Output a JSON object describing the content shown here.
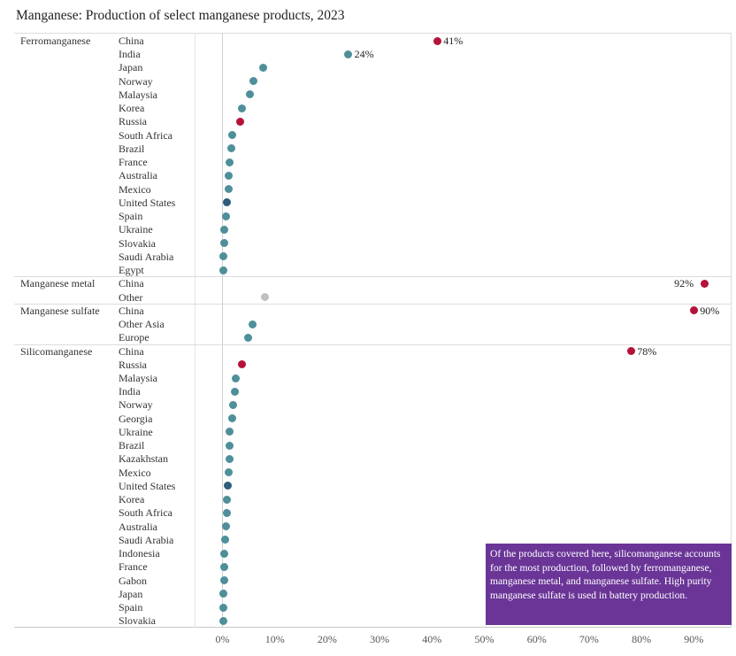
{
  "title": "Manganese: Production of select manganese products, 2023",
  "colors": {
    "china": "#b5123a",
    "default": "#4e8f99",
    "united_states": "#2f5b7d",
    "other": "#c0c0c0",
    "note_bg": "#6a3597"
  },
  "note": "Of the products covered here, silicomanganese accounts for the most production, followed by ferromanganese, manganese metal, and manganese sulfate. High purity manganese sulfate is used in battery production.",
  "chart_data": {
    "type": "scatter",
    "title": "Manganese: Production of select manganese products, 2023",
    "xlabel": "",
    "ylabel": "",
    "xlim": [
      0,
      97
    ],
    "x_ticks": [
      "0%",
      "10%",
      "20%",
      "30%",
      "40%",
      "50%",
      "60%",
      "70%",
      "80%",
      "90%"
    ],
    "x_tick_values": [
      0,
      10,
      20,
      30,
      40,
      50,
      60,
      70,
      80,
      90
    ],
    "value_unit": "percent share of production",
    "groups": [
      {
        "name": "Ferromanganese",
        "rows": [
          {
            "country": "China",
            "value": 41,
            "label": "41%",
            "category": "china"
          },
          {
            "country": "India",
            "value": 24,
            "label": "24%",
            "category": "default"
          },
          {
            "country": "Japan",
            "value": 7.8,
            "category": "default"
          },
          {
            "country": "Norway",
            "value": 5.9,
            "category": "default"
          },
          {
            "country": "Malaysia",
            "value": 5.3,
            "category": "default"
          },
          {
            "country": "Korea",
            "value": 3.7,
            "category": "default"
          },
          {
            "country": "Russia",
            "value": 3.3,
            "category": "china"
          },
          {
            "country": "South Africa",
            "value": 1.9,
            "category": "default"
          },
          {
            "country": "Brazil",
            "value": 1.7,
            "category": "default"
          },
          {
            "country": "France",
            "value": 1.4,
            "category": "default"
          },
          {
            "country": "Australia",
            "value": 1.2,
            "category": "default"
          },
          {
            "country": "Mexico",
            "value": 1.1,
            "category": "default"
          },
          {
            "country": "United States",
            "value": 0.9,
            "category": "united_states"
          },
          {
            "country": "Spain",
            "value": 0.6,
            "category": "default"
          },
          {
            "country": "Ukraine",
            "value": 0.4,
            "category": "default"
          },
          {
            "country": "Slovakia",
            "value": 0.3,
            "category": "default"
          },
          {
            "country": "Saudi Arabia",
            "value": 0.2,
            "category": "default"
          },
          {
            "country": "Egypt",
            "value": 0.1,
            "category": "default"
          }
        ]
      },
      {
        "name": "Manganese metal",
        "rows": [
          {
            "country": "China",
            "value": 92,
            "label": "92%",
            "category": "china",
            "label_side": "left"
          },
          {
            "country": "Other",
            "value": 8.1,
            "category": "other"
          }
        ]
      },
      {
        "name": "Manganese sulfate",
        "rows": [
          {
            "country": "China",
            "value": 90,
            "label": "90%",
            "category": "china"
          },
          {
            "country": "Other Asia",
            "value": 5.8,
            "category": "default"
          },
          {
            "country": "Europe",
            "value": 4.9,
            "category": "default"
          }
        ]
      },
      {
        "name": "Silicomanganese",
        "rows": [
          {
            "country": "China",
            "value": 78,
            "label": "78%",
            "category": "china"
          },
          {
            "country": "Russia",
            "value": 3.7,
            "category": "china"
          },
          {
            "country": "Malaysia",
            "value": 2.6,
            "category": "default"
          },
          {
            "country": "India",
            "value": 2.3,
            "category": "default"
          },
          {
            "country": "Norway",
            "value": 2.1,
            "category": "default"
          },
          {
            "country": "Georgia",
            "value": 1.9,
            "category": "default"
          },
          {
            "country": "Ukraine",
            "value": 1.4,
            "category": "default"
          },
          {
            "country": "Brazil",
            "value": 1.4,
            "category": "default"
          },
          {
            "country": "Kazakhstan",
            "value": 1.3,
            "category": "default"
          },
          {
            "country": "Mexico",
            "value": 1.1,
            "category": "default"
          },
          {
            "country": "United States",
            "value": 1.0,
            "category": "united_states"
          },
          {
            "country": "Korea",
            "value": 0.9,
            "category": "default"
          },
          {
            "country": "South Africa",
            "value": 0.8,
            "category": "default"
          },
          {
            "country": "Australia",
            "value": 0.7,
            "category": "default"
          },
          {
            "country": "Saudi Arabia",
            "value": 0.5,
            "category": "default"
          },
          {
            "country": "Indonesia",
            "value": 0.4,
            "category": "default"
          },
          {
            "country": "France",
            "value": 0.3,
            "category": "default"
          },
          {
            "country": "Gabon",
            "value": 0.3,
            "category": "default"
          },
          {
            "country": "Japan",
            "value": 0.2,
            "category": "default"
          },
          {
            "country": "Spain",
            "value": 0.2,
            "category": "default"
          },
          {
            "country": "Slovakia",
            "value": 0.1,
            "category": "default"
          }
        ]
      }
    ]
  }
}
